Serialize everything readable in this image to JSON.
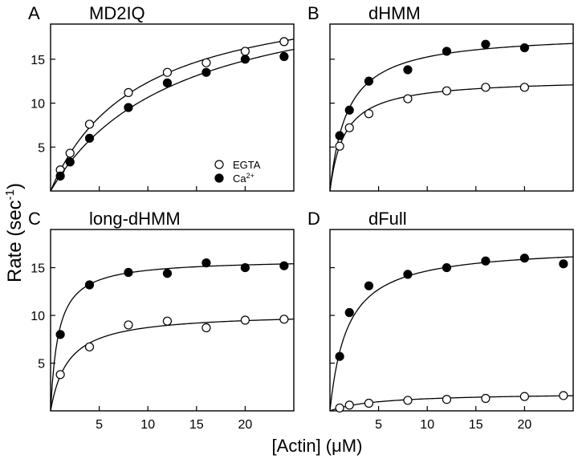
{
  "figure": {
    "ylabel": "Rate (sec",
    "ylabel_sup": "-1",
    "ylabel_close": ")",
    "xlabel": "[Actin] (μM)"
  },
  "chart_data": [
    {
      "type": "scatter",
      "panel_letter": "A",
      "title": "MD2IQ",
      "xlim": [
        0,
        25
      ],
      "ylim": [
        0,
        19
      ],
      "x_ticks": [
        5,
        10,
        15,
        20
      ],
      "x_tick_labels_visible": false,
      "y_ticks": [
        5,
        10,
        15
      ],
      "y_tick_labels_visible": true,
      "legend": {
        "placement": "bottom-right",
        "entries": [
          {
            "label": "EGTA",
            "marker": "open"
          },
          {
            "label": "Ca",
            "sup": "2+",
            "marker": "filled"
          }
        ]
      },
      "series": [
        {
          "marker": "open",
          "x": [
            1,
            2,
            4,
            8,
            12,
            16,
            20,
            24
          ],
          "y": [
            2.4,
            4.3,
            7.6,
            11.2,
            13.5,
            14.6,
            15.9,
            17.0
          ],
          "fit": {
            "vmax": 23.5,
            "km": 9.0
          }
        },
        {
          "marker": "filled",
          "x": [
            1,
            2,
            4,
            8,
            12,
            16,
            20,
            24
          ],
          "y": [
            1.7,
            3.3,
            6.0,
            9.5,
            12.3,
            13.5,
            15.0,
            15.3
          ],
          "fit": {
            "vmax": 24.5,
            "km": 13.0
          }
        }
      ]
    },
    {
      "type": "scatter",
      "panel_letter": "B",
      "title": "dHMM",
      "xlim": [
        0,
        25
      ],
      "ylim": [
        0,
        19
      ],
      "x_ticks": [
        5,
        10,
        15,
        20
      ],
      "x_tick_labels_visible": false,
      "y_ticks": [
        5,
        10,
        15
      ],
      "y_tick_labels_visible": false,
      "series": [
        {
          "marker": "filled",
          "x": [
            1,
            2,
            4,
            8,
            12,
            16,
            20
          ],
          "y": [
            6.3,
            9.2,
            12.5,
            13.8,
            15.9,
            16.7,
            16.3
          ],
          "fit": {
            "vmax": 18.0,
            "km": 1.8
          }
        },
        {
          "marker": "open",
          "x": [
            1,
            2,
            4,
            8,
            12,
            16,
            20
          ],
          "y": [
            5.1,
            7.2,
            8.8,
            10.5,
            11.4,
            11.8,
            11.8
          ],
          "fit": {
            "vmax": 12.8,
            "km": 1.5
          }
        }
      ]
    },
    {
      "type": "scatter",
      "panel_letter": "C",
      "title": "long-dHMM",
      "xlim": [
        0,
        25
      ],
      "ylim": [
        0,
        19
      ],
      "x_ticks": [
        5,
        10,
        15,
        20
      ],
      "x_tick_labels_visible": true,
      "y_ticks": [
        5,
        10,
        15
      ],
      "y_tick_labels_visible": true,
      "series": [
        {
          "marker": "filled",
          "x": [
            1,
            4,
            8,
            12,
            16,
            20,
            24
          ],
          "y": [
            8.0,
            13.2,
            14.5,
            14.4,
            15.5,
            15.0,
            15.2
          ],
          "fit": {
            "vmax": 15.9,
            "km": 0.8
          }
        },
        {
          "marker": "open",
          "x": [
            1,
            4,
            8,
            12,
            16,
            20,
            24
          ],
          "y": [
            3.8,
            6.7,
            9.0,
            9.4,
            8.7,
            9.5,
            9.6
          ],
          "fit": {
            "vmax": 10.3,
            "km": 1.8
          }
        }
      ]
    },
    {
      "type": "scatter",
      "panel_letter": "D",
      "title": "dFull",
      "xlim": [
        0,
        25
      ],
      "ylim": [
        0,
        19
      ],
      "x_ticks": [
        5,
        10,
        15,
        20
      ],
      "x_tick_labels_visible": true,
      "y_ticks": [
        5,
        10,
        15
      ],
      "y_tick_labels_visible": false,
      "series": [
        {
          "marker": "filled",
          "x": [
            1,
            2,
            4,
            8,
            12,
            16,
            20,
            24
          ],
          "y": [
            5.7,
            10.3,
            13.1,
            14.3,
            15.0,
            15.7,
            16.0,
            15.4
          ],
          "fit": {
            "vmax": 17.3,
            "km": 1.8
          }
        },
        {
          "marker": "open",
          "x": [
            1,
            2,
            4,
            8,
            12,
            16,
            20,
            24
          ],
          "y": [
            0.3,
            0.6,
            0.8,
            1.1,
            1.2,
            1.3,
            1.5,
            1.6
          ],
          "fit": {
            "vmax": 1.9,
            "km": 5.0
          }
        }
      ]
    }
  ]
}
